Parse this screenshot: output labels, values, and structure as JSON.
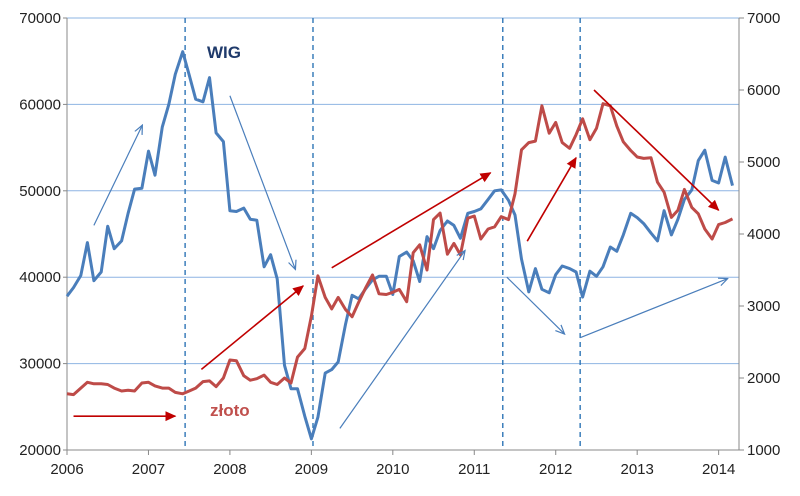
{
  "chart_data": {
    "type": "line",
    "title": "",
    "xlabel": "",
    "ylabel_left": "",
    "ylabel_right": "",
    "x_ticks": [
      "2006",
      "2007",
      "2008",
      "2009",
      "2010",
      "2011",
      "2012",
      "2013",
      "2014"
    ],
    "xlim": [
      2006,
      2014.25
    ],
    "y_left": {
      "ticks": [
        "20000",
        "30000",
        "40000",
        "50000",
        "60000",
        "70000"
      ],
      "lim": [
        20000,
        70000
      ]
    },
    "y_right": {
      "ticks": [
        "1000",
        "2000",
        "3000",
        "4000",
        "5000",
        "6000",
        "7000"
      ],
      "lim": [
        1000,
        7000
      ]
    },
    "grid": "horizontal",
    "legend": "inline labels",
    "colors": {
      "wig": "#4a7ebb",
      "zloto": "#be4b48",
      "arrow_blue": "#4a7ebb",
      "arrow_red": "#c00000",
      "grid": "#8eb4e3",
      "divider": "#2e75b6",
      "axis": "#888888"
    },
    "series": [
      {
        "name": "WIG",
        "axis": "left",
        "color": "#4a7ebb",
        "x": [
          2006.0,
          2006.08,
          2006.17,
          2006.25,
          2006.33,
          2006.42,
          2006.5,
          2006.58,
          2006.67,
          2006.75,
          2006.83,
          2006.92,
          2007.0,
          2007.08,
          2007.17,
          2007.25,
          2007.33,
          2007.42,
          2007.5,
          2007.58,
          2007.67,
          2007.75,
          2007.83,
          2007.92,
          2008.0,
          2008.08,
          2008.17,
          2008.25,
          2008.33,
          2008.42,
          2008.5,
          2008.58,
          2008.67,
          2008.75,
          2008.83,
          2008.92,
          2009.0,
          2009.08,
          2009.17,
          2009.25,
          2009.33,
          2009.42,
          2009.5,
          2009.58,
          2009.67,
          2009.75,
          2009.83,
          2009.92,
          2010.0,
          2010.08,
          2010.17,
          2010.25,
          2010.33,
          2010.42,
          2010.5,
          2010.58,
          2010.67,
          2010.75,
          2010.83,
          2010.92,
          2011.0,
          2011.08,
          2011.17,
          2011.25,
          2011.33,
          2011.42,
          2011.5,
          2011.58,
          2011.67,
          2011.75,
          2011.83,
          2011.92,
          2012.0,
          2012.08,
          2012.17,
          2012.25,
          2012.33,
          2012.42,
          2012.5,
          2012.58,
          2012.67,
          2012.75,
          2012.83,
          2012.92,
          2013.0,
          2013.08,
          2013.17,
          2013.25,
          2013.33,
          2013.42,
          2013.5,
          2013.58,
          2013.67,
          2013.75,
          2013.83,
          2013.92,
          2014.0,
          2014.08,
          2014.17
        ],
        "values": [
          37800,
          38800,
          40200,
          44000,
          39600,
          40600,
          45900,
          43300,
          44200,
          47400,
          50200,
          50300,
          54600,
          51800,
          57400,
          60000,
          63500,
          66100,
          63400,
          60600,
          60300,
          63100,
          56700,
          55700,
          47700,
          47600,
          48000,
          46700,
          46600,
          41200,
          42600,
          39800,
          29800,
          27100,
          27100,
          23900,
          21300,
          23800,
          28900,
          29300,
          30200,
          34600,
          37900,
          37500,
          38700,
          39700,
          40100,
          40100,
          38000,
          42400,
          42900,
          41900,
          39500,
          44700,
          43300,
          45400,
          46500,
          46000,
          44500,
          47400,
          47600,
          47900,
          49000,
          50000,
          50100,
          48900,
          47200,
          42100,
          38300,
          41000,
          38600,
          38200,
          40300,
          41300,
          41000,
          40600,
          37700,
          40700,
          40100,
          41200,
          43500,
          43000,
          44900,
          47400,
          46900,
          46200,
          45100,
          44200,
          47700,
          44900,
          46700,
          49000,
          50100,
          53500,
          54700,
          51200,
          50900,
          53900,
          50600
        ]
      },
      {
        "name": "złoto",
        "axis": "right",
        "color": "#be4b48",
        "x": [
          2006.0,
          2006.08,
          2006.17,
          2006.25,
          2006.33,
          2006.42,
          2006.5,
          2006.58,
          2006.67,
          2006.75,
          2006.83,
          2006.92,
          2007.0,
          2007.08,
          2007.17,
          2007.25,
          2007.33,
          2007.42,
          2007.5,
          2007.58,
          2007.67,
          2007.75,
          2007.83,
          2007.92,
          2008.0,
          2008.08,
          2008.17,
          2008.25,
          2008.33,
          2008.42,
          2008.5,
          2008.58,
          2008.67,
          2008.75,
          2008.83,
          2008.92,
          2009.0,
          2009.08,
          2009.17,
          2009.25,
          2009.33,
          2009.42,
          2009.5,
          2009.58,
          2009.67,
          2009.75,
          2009.83,
          2009.92,
          2010.0,
          2010.08,
          2010.17,
          2010.25,
          2010.33,
          2010.42,
          2010.5,
          2010.58,
          2010.67,
          2010.75,
          2010.83,
          2010.92,
          2011.0,
          2011.08,
          2011.17,
          2011.25,
          2011.33,
          2011.42,
          2011.5,
          2011.58,
          2011.67,
          2011.75,
          2011.83,
          2011.92,
          2012.0,
          2012.08,
          2012.17,
          2012.25,
          2012.33,
          2012.42,
          2012.5,
          2012.58,
          2012.67,
          2012.75,
          2012.83,
          2012.92,
          2013.0,
          2013.08,
          2013.17,
          2013.25,
          2013.33,
          2013.42,
          2013.5,
          2013.58,
          2013.67,
          2013.75,
          2013.83,
          2013.92,
          2014.0,
          2014.08,
          2014.17
        ],
        "values": [
          1780,
          1770,
          1860,
          1940,
          1920,
          1920,
          1910,
          1860,
          1820,
          1830,
          1820,
          1930,
          1940,
          1890,
          1860,
          1860,
          1800,
          1780,
          1820,
          1860,
          1950,
          1960,
          1880,
          2000,
          2250,
          2240,
          2030,
          1970,
          1990,
          2040,
          1940,
          1910,
          2000,
          1930,
          2290,
          2410,
          2860,
          3420,
          3120,
          2960,
          3120,
          2950,
          2850,
          3050,
          3260,
          3430,
          3170,
          3160,
          3190,
          3230,
          3060,
          3740,
          3850,
          3500,
          4200,
          4290,
          3720,
          3870,
          3710,
          4220,
          4250,
          3930,
          4070,
          4100,
          4240,
          4200,
          4560,
          5170,
          5270,
          5290,
          5780,
          5400,
          5550,
          5270,
          5190,
          5380,
          5600,
          5310,
          5470,
          5810,
          5780,
          5500,
          5280,
          5160,
          5070,
          5050,
          5060,
          4720,
          4580,
          4230,
          4330,
          4620,
          4370,
          4280,
          4070,
          3930,
          4130,
          4160,
          4210
        ]
      }
    ],
    "event_lines_x": [
      2007.45,
      2009.02,
      2011.35,
      2012.3
    ],
    "trend_arrows": [
      {
        "color": "blue",
        "from": [
          2006.33,
          46000
        ],
        "to": [
          2006.92,
          57500
        ]
      },
      {
        "color": "blue",
        "from": [
          2008.0,
          61000
        ],
        "to": [
          2008.8,
          41000
        ]
      },
      {
        "color": "blue",
        "from": [
          2009.35,
          22500
        ],
        "to": [
          2010.88,
          43000
        ]
      },
      {
        "color": "blue",
        "from": [
          2011.4,
          40000
        ],
        "to": [
          2012.1,
          33500
        ]
      },
      {
        "color": "blue",
        "from": [
          2012.3,
          33000
        ],
        "to": [
          2014.1,
          39800
        ]
      },
      {
        "color": "red",
        "from": [
          2006.08,
          1470
        ],
        "to": [
          2007.33,
          1470
        ]
      },
      {
        "color": "red",
        "from": [
          2007.65,
          2120
        ],
        "to": [
          2008.9,
          3280
        ]
      },
      {
        "color": "red",
        "from": [
          2009.25,
          3530
        ],
        "to": [
          2011.2,
          4850
        ]
      },
      {
        "color": "red",
        "from": [
          2011.65,
          3900
        ],
        "to": [
          2012.25,
          5060
        ]
      },
      {
        "color": "red",
        "from": [
          2012.47,
          6000
        ],
        "to": [
          2014.0,
          4330
        ]
      }
    ],
    "annotations": [
      {
        "text": "WIG",
        "series": "WIG"
      },
      {
        "text": "złoto",
        "series": "złoto"
      }
    ]
  }
}
